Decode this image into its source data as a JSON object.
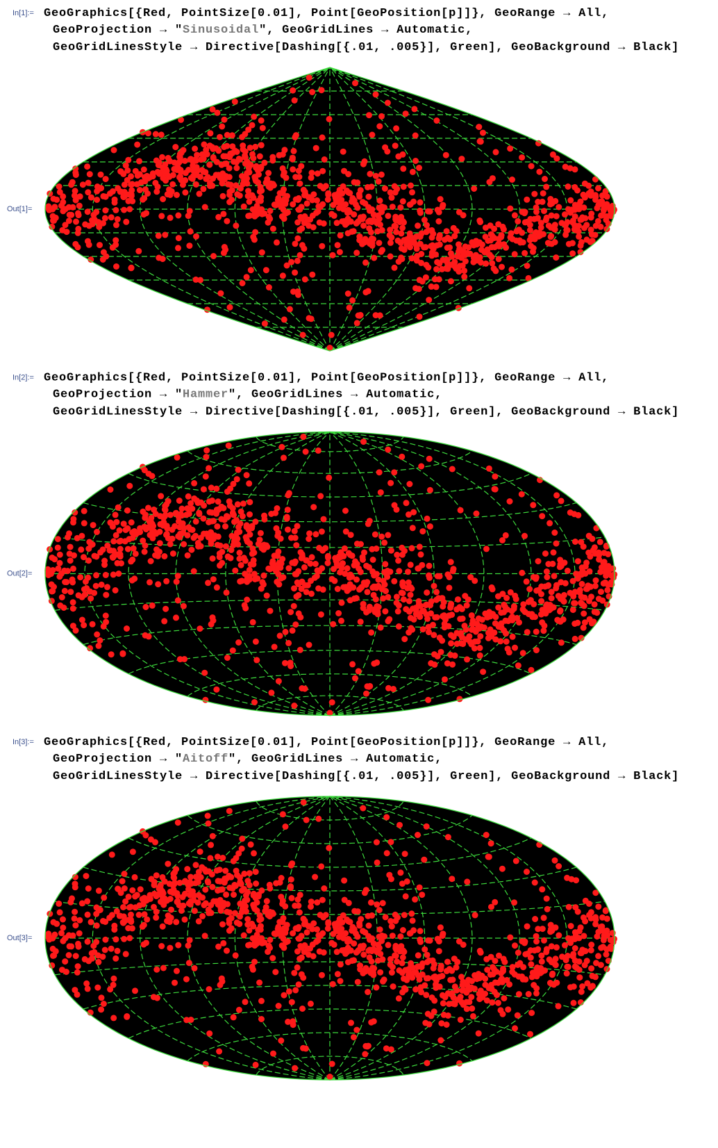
{
  "cells": [
    {
      "in_label": "In[1]:=",
      "line1": "GeoGraphics[{Red, PointSize[0.01], Point[GeoPosition[p]]}, GeoRange → All,",
      "line2": {
        "pre": "GeoProjection → \"",
        "string": "Sinusoidal",
        "post": "\", GeoGridLines → Automatic,"
      },
      "line3": "GeoGridLinesStyle → Directive[Dashing[{.01, .005}], Green], GeoBackground → Black]",
      "out_label": "Out[1]=",
      "projection": "sinusoidal"
    },
    {
      "in_label": "In[2]:=",
      "line1": "GeoGraphics[{Red, PointSize[0.01], Point[GeoPosition[p]]}, GeoRange → All,",
      "line2": {
        "pre": "GeoProjection → \"",
        "string": "Hammer",
        "post": "\", GeoGridLines → Automatic,"
      },
      "line3": "GeoGridLinesStyle → Directive[Dashing[{.01, .005}], Green], GeoBackground → Black]",
      "out_label": "Out[2]=",
      "projection": "hammer"
    },
    {
      "in_label": "In[3]:=",
      "line1": "GeoGraphics[{Red, PointSize[0.01], Point[GeoPosition[p]]}, GeoRange → All,",
      "line2": {
        "pre": "GeoProjection → \"",
        "string": "Aitoff",
        "post": "\", GeoGridLines → Automatic,"
      },
      "line3": "GeoGridLinesStyle → Directive[Dashing[{.01, .005}], Green], GeoBackground → Black]",
      "out_label": "Out[3]=",
      "projection": "aitoff"
    }
  ]
}
